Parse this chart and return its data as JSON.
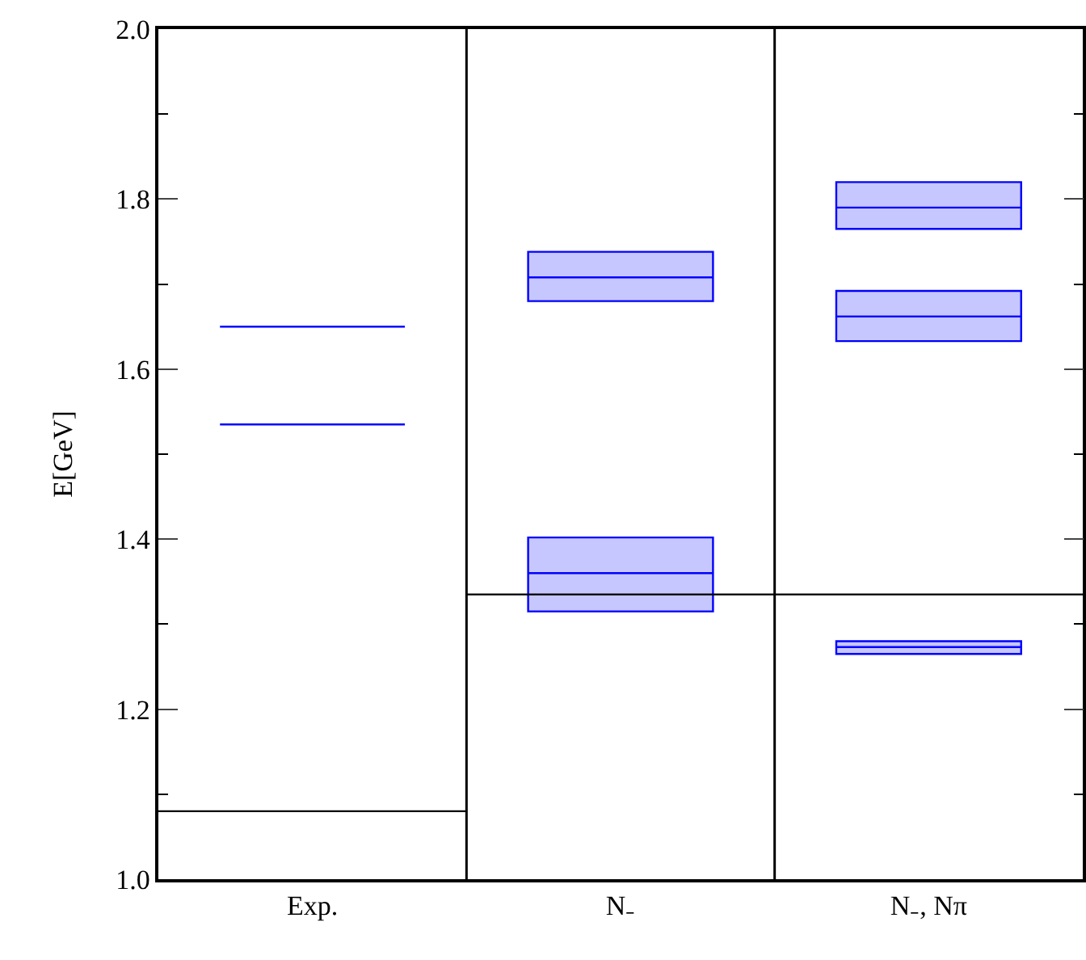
{
  "chart_data": {
    "type": "box",
    "ylabel": "E[GeV]",
    "categories": [
      "Exp.",
      "N₋",
      "N₋, Nπ"
    ],
    "ylim": [
      1.0,
      2.0
    ],
    "yticks": [
      {
        "value": 1.0,
        "label": "1.0"
      },
      1.2,
      1.4,
      1.6,
      1.8,
      {
        "value": 2.0,
        "label": "2.0"
      }
    ],
    "grid": false,
    "series": [
      {
        "color": "#0000ff",
        "boxes": [
          {
            "low": 1.535,
            "q1": 1.535,
            "median": 1.535,
            "q3": 1.535,
            "high": 1.535
          },
          {
            "low": 1.315,
            "q1": 1.315,
            "median": 1.36,
            "q3": 1.402,
            "high": 1.402
          },
          {
            "low": 1.265,
            "q1": 1.265,
            "median": 1.273,
            "q3": 1.28,
            "high": 1.28
          }
        ]
      },
      {
        "color": "#0000ff",
        "boxes": [
          {
            "low": 1.65,
            "q1": 1.65,
            "median": 1.65,
            "q3": 1.65,
            "high": 1.65
          },
          {
            "low": 1.68,
            "q1": 1.68,
            "median": 1.708,
            "q3": 1.738,
            "high": 1.738
          },
          {
            "low": 1.633,
            "q1": 1.633,
            "median": 1.662,
            "q3": 1.692,
            "high": 1.692
          }
        ]
      },
      {
        "color": "#0000ff",
        "boxes": [
          null,
          null,
          {
            "low": 1.765,
            "q1": 1.765,
            "median": 1.79,
            "q3": 1.82,
            "high": 1.82
          }
        ]
      },
      {
        "color": "#000000",
        "line_style": "dashed",
        "boxes": [
          {
            "low": 1.08,
            "q1": 1.08,
            "median": 1.08,
            "q3": 1.08,
            "high": 1.08
          },
          {
            "low": 1.335,
            "q1": 1.335,
            "median": 1.335,
            "q3": 1.335,
            "high": 1.335
          },
          {
            "low": 1.335,
            "q1": 1.335,
            "median": 1.335,
            "q3": 1.335,
            "high": 1.335
          }
        ]
      }
    ]
  }
}
